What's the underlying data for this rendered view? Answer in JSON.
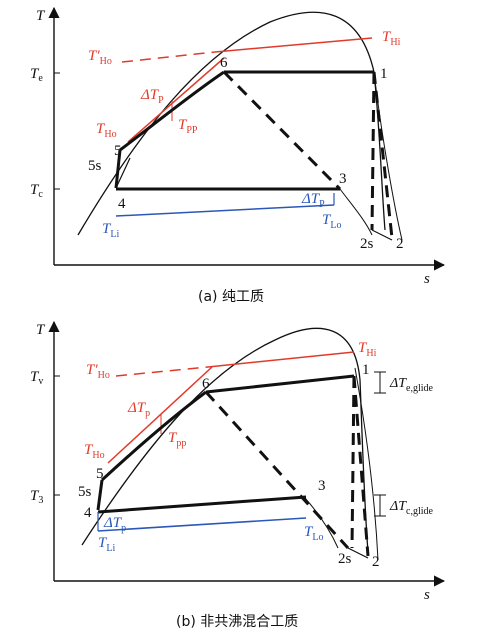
{
  "panel_a": {
    "axis_t": "T",
    "axis_s": "s",
    "te": "T",
    "te_sub": "e",
    "tc": "T",
    "tc_sub": "c",
    "pts": [
      "1",
      "2",
      "2s",
      "3",
      "4",
      "5",
      "5s",
      "6"
    ],
    "tho_prime": "T′",
    "tho_prime_sub": "Ho",
    "thi": "T",
    "thi_sub": "Hi",
    "dtp": "ΔT",
    "dtp_sub": "P",
    "tpp": "T",
    "tpp_sub": "PP",
    "tho": "T",
    "tho_sub": "Ho",
    "dtp2": "ΔT",
    "dtp2_sub": "P",
    "tli": "T",
    "tli_sub": "Li",
    "tlo": "T",
    "tlo_sub": "Lo",
    "caption": "(a) 纯工质"
  },
  "panel_b": {
    "axis_t": "T",
    "axis_s": "s",
    "tv": "T",
    "tv_sub": "v",
    "t3": "T",
    "t3_sub": "3",
    "pts": [
      "1",
      "2",
      "2s",
      "3",
      "4",
      "5",
      "5s",
      "6"
    ],
    "tho_prime": "T′",
    "tho_prime_sub": "Ho",
    "thi": "T",
    "thi_sub": "Hi",
    "dtp": "ΔT",
    "dtp_sub": "p",
    "tpp": "T",
    "tpp_sub": "pp",
    "tho": "T",
    "tho_sub": "Ho",
    "dtp2": "ΔT",
    "dtp2_sub": "p",
    "tli": "T",
    "tli_sub": "Li",
    "tlo": "T",
    "tlo_sub": "Lo",
    "glide_e": "ΔT",
    "glide_e_sub": "e,glide",
    "glide_c": "ΔT",
    "glide_c_sub": "c,glide",
    "caption": "(b) 非共沸混合工质"
  },
  "colors": {
    "line": "#111111",
    "hot": "#e23a2a",
    "cold": "#2a57b8"
  }
}
